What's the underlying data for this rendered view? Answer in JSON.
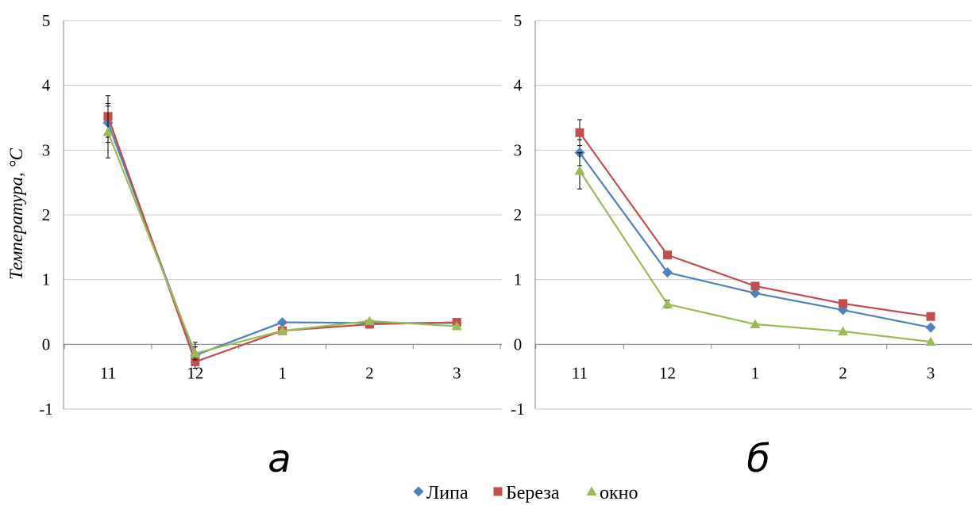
{
  "chart_data": [
    {
      "type": "line",
      "panel_label": "а",
      "ylabel": "Температура, °С",
      "ylim": [
        -1,
        5
      ],
      "yticks": [
        -1,
        0,
        1,
        2,
        3,
        4,
        5
      ],
      "categories": [
        "11",
        "12",
        "1",
        "2",
        "3"
      ],
      "grid": true,
      "series": [
        {
          "name": "Липа",
          "color": "#4F81BD",
          "marker": "diamond",
          "values": [
            3.42,
            -0.17,
            0.34,
            0.33,
            0.33
          ],
          "errors": [
            0.3,
            0.2,
            0,
            0,
            0
          ]
        },
        {
          "name": "Береза",
          "color": "#C0504D",
          "marker": "square",
          "values": [
            3.52,
            -0.27,
            0.21,
            0.31,
            0.34
          ],
          "errors": [
            0.32,
            0,
            0,
            0,
            0
          ]
        },
        {
          "name": "окно",
          "color": "#9BBB59",
          "marker": "triangle",
          "values": [
            3.28,
            -0.14,
            0.21,
            0.36,
            0.28
          ],
          "errors": [
            0.4,
            0.1,
            0,
            0,
            0
          ]
        }
      ]
    },
    {
      "type": "line",
      "panel_label": "б",
      "ylabel": "",
      "ylim": [
        -1,
        5
      ],
      "yticks": [
        -1,
        0,
        1,
        2,
        3,
        4,
        5
      ],
      "categories": [
        "11",
        "12",
        "1",
        "2",
        "3"
      ],
      "grid": true,
      "series": [
        {
          "name": "Липа",
          "color": "#4F81BD",
          "marker": "diamond",
          "values": [
            2.96,
            1.11,
            0.79,
            0.53,
            0.26
          ],
          "errors": [
            0.2,
            0,
            0,
            0,
            0
          ]
        },
        {
          "name": "Береза",
          "color": "#C0504D",
          "marker": "square",
          "values": [
            3.27,
            1.38,
            0.9,
            0.63,
            0.43
          ],
          "errors": [
            0.2,
            0,
            0,
            0,
            0
          ]
        },
        {
          "name": "окно",
          "color": "#9BBB59",
          "marker": "triangle",
          "values": [
            2.68,
            0.62,
            0.31,
            0.2,
            0.04
          ],
          "errors": [
            0.28,
            0.06,
            0,
            0,
            0
          ]
        }
      ]
    }
  ],
  "legend": {
    "position": "bottom-center",
    "items": [
      {
        "label": "Липа",
        "color": "#4F81BD",
        "marker": "diamond"
      },
      {
        "label": "Береза",
        "color": "#C0504D",
        "marker": "square"
      },
      {
        "label": "окно",
        "color": "#9BBB59",
        "marker": "triangle"
      }
    ]
  }
}
